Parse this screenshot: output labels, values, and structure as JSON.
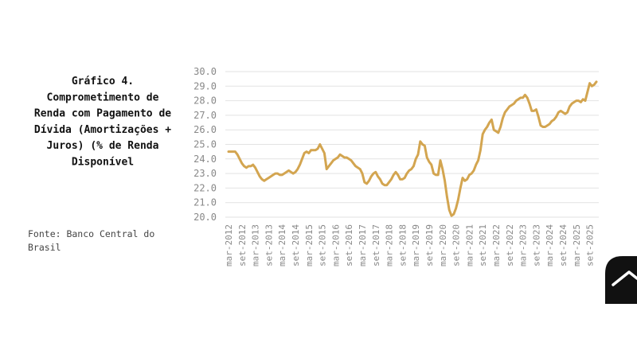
{
  "chart_data": {
    "type": "line",
    "title": [
      "Gráfico 4.",
      "Comprometimento de",
      "Renda com Pagamento de",
      "Dívida (Amortizações +",
      "Juros) (% de Renda",
      "Disponível"
    ],
    "source": [
      "Fonte: Banco Central do",
      "Brasil"
    ],
    "color": "#d3a550",
    "grid": true,
    "ylim": [
      20,
      30
    ],
    "yticks": [
      {
        "value": 20,
        "label": "20.0"
      },
      {
        "value": 21,
        "label": "21.0"
      },
      {
        "value": 22,
        "label": "22.0"
      },
      {
        "value": 23,
        "label": "23.0"
      },
      {
        "value": 24,
        "label": "24.0"
      },
      {
        "value": 25,
        "label": "25.0"
      },
      {
        "value": 26,
        "label": "26.0"
      },
      {
        "value": 27,
        "label": "27.0"
      },
      {
        "value": 28,
        "label": "28.0"
      },
      {
        "value": 29,
        "label": "29.0"
      },
      {
        "value": 30,
        "label": "30.0"
      }
    ],
    "categories": [
      "mar-2012",
      null,
      null,
      null,
      null,
      null,
      "set-2012",
      null,
      null,
      null,
      null,
      null,
      "mar-2013",
      null,
      null,
      null,
      null,
      null,
      "set-2013",
      null,
      null,
      null,
      null,
      null,
      "mar-2014",
      null,
      null,
      null,
      null,
      null,
      "set-2014",
      null,
      null,
      null,
      null,
      null,
      "mar-2015",
      null,
      null,
      null,
      null,
      null,
      "set-2015",
      null,
      null,
      null,
      null,
      null,
      "mar-2016",
      null,
      null,
      null,
      null,
      null,
      "set-2016",
      null,
      null,
      null,
      null,
      null,
      "mar-2017",
      null,
      null,
      null,
      null,
      null,
      "set-2017",
      null,
      null,
      null,
      null,
      null,
      "mar-2018",
      null,
      null,
      null,
      null,
      null,
      "set-2018",
      null,
      null,
      null,
      null,
      null,
      "mar-2019",
      null,
      null,
      null,
      null,
      null,
      "set-2019",
      null,
      null,
      null,
      null,
      null,
      "mar-2020",
      null,
      null,
      null,
      null,
      null,
      "set-2020",
      null,
      null,
      null,
      null,
      null,
      "mar-2021",
      null,
      null,
      null,
      null,
      null,
      "set-2021",
      null,
      null,
      null,
      null,
      null,
      "mar-2022",
      null,
      null,
      null,
      null,
      null,
      "set-2022",
      null,
      null,
      null,
      null,
      null,
      "mar-2023",
      null,
      null,
      null,
      null,
      null,
      "set-2023",
      null,
      null,
      null,
      null,
      null,
      "mar-2024",
      null,
      null,
      null,
      null,
      null,
      "set-2024",
      null,
      null,
      null,
      null,
      null,
      "mar-2025",
      null,
      null,
      null,
      null,
      null,
      "set-2025",
      null,
      null,
      null
    ],
    "values": [
      24.5,
      24.5,
      24.5,
      24.5,
      24.3,
      24.0,
      23.7,
      23.5,
      23.4,
      23.5,
      23.5,
      23.6,
      23.4,
      23.1,
      22.8,
      22.6,
      22.5,
      22.6,
      22.7,
      22.8,
      22.9,
      23.0,
      23.0,
      22.9,
      22.9,
      23.0,
      23.1,
      23.2,
      23.1,
      23.0,
      23.1,
      23.3,
      23.6,
      24.0,
      24.4,
      24.5,
      24.4,
      24.6,
      24.6,
      24.6,
      24.7,
      25.0,
      24.7,
      24.4,
      23.3,
      23.5,
      23.7,
      23.9,
      24.0,
      24.1,
      24.3,
      24.2,
      24.1,
      24.1,
      24.0,
      23.9,
      23.7,
      23.5,
      23.4,
      23.3,
      23.0,
      22.4,
      22.3,
      22.5,
      22.8,
      23.0,
      23.1,
      22.8,
      22.6,
      22.3,
      22.2,
      22.2,
      22.4,
      22.6,
      22.9,
      23.1,
      22.9,
      22.6,
      22.6,
      22.7,
      23.0,
      23.2,
      23.3,
      23.5,
      24.0,
      24.3,
      25.2,
      25.0,
      24.9,
      24.1,
      23.8,
      23.6,
      23.0,
      22.9,
      22.9,
      23.9,
      23.3,
      22.5,
      21.4,
      20.5,
      20.1,
      20.2,
      20.6,
      21.2,
      22.0,
      22.7,
      22.5,
      22.6,
      22.9,
      23.0,
      23.2,
      23.6,
      23.9,
      24.6,
      25.7,
      26.0,
      26.2,
      26.5,
      26.7,
      26.0,
      25.9,
      25.8,
      26.2,
      26.8,
      27.2,
      27.4,
      27.6,
      27.7,
      27.8,
      28.0,
      28.1,
      28.2,
      28.2,
      28.4,
      28.2,
      27.8,
      27.3,
      27.3,
      27.4,
      26.9,
      26.3,
      26.2,
      26.2,
      26.3,
      26.4,
      26.6,
      26.7,
      26.9,
      27.2,
      27.3,
      27.2,
      27.1,
      27.2,
      27.6,
      27.8,
      27.9,
      28.0,
      28.0,
      27.9,
      28.1,
      28.0,
      28.6,
      29.2,
      29.0,
      29.1,
      29.3
    ]
  }
}
